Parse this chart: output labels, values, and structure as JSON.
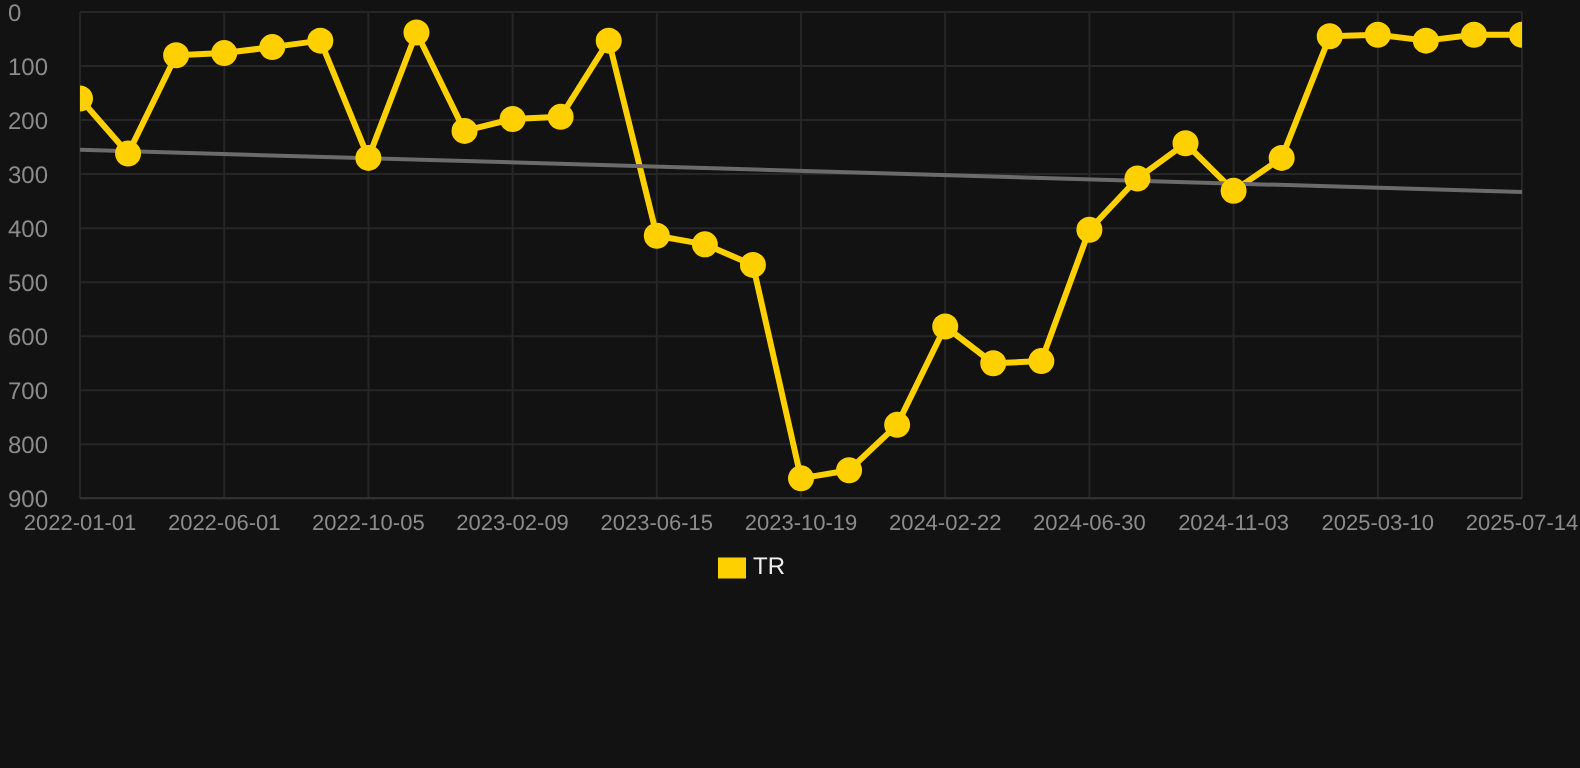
{
  "chart_data": {
    "type": "line",
    "categories": [
      "2022-01-01",
      null,
      null,
      "2022-06-01",
      null,
      null,
      "2022-10-05",
      null,
      null,
      "2023-02-09",
      null,
      null,
      "2023-06-15",
      null,
      null,
      "2023-10-19",
      null,
      null,
      "2024-02-22",
      null,
      null,
      "2024-06-30",
      null,
      null,
      "2024-11-03",
      null,
      null,
      "2025-03-10",
      null,
      null,
      "2025-07-14"
    ],
    "series": [
      {
        "name": "TR",
        "color": "#ffd000",
        "values": [
          160,
          262,
          80,
          76,
          65,
          53,
          270,
          38,
          220,
          198,
          194,
          53,
          414,
          430,
          468,
          863,
          848,
          764,
          582,
          650,
          646,
          403,
          308,
          243,
          331,
          270,
          45,
          42,
          53,
          42,
          42
        ]
      },
      {
        "type": "line",
        "color": "#6b6b6b",
        "marker": "none",
        "values": [
          255,
          null,
          null,
          null,
          null,
          null,
          null,
          null,
          null,
          null,
          null,
          null,
          null,
          null,
          null,
          null,
          null,
          null,
          null,
          null,
          null,
          null,
          null,
          null,
          null,
          null,
          null,
          null,
          null,
          null,
          333
        ]
      }
    ],
    "ylim": [
      900,
      0
    ],
    "yticks": [
      0,
      100,
      200,
      300,
      400,
      500,
      600,
      700,
      800,
      900
    ],
    "grid": true,
    "legend": "bottom",
    "marker": "circle",
    "line_style": "solid"
  }
}
